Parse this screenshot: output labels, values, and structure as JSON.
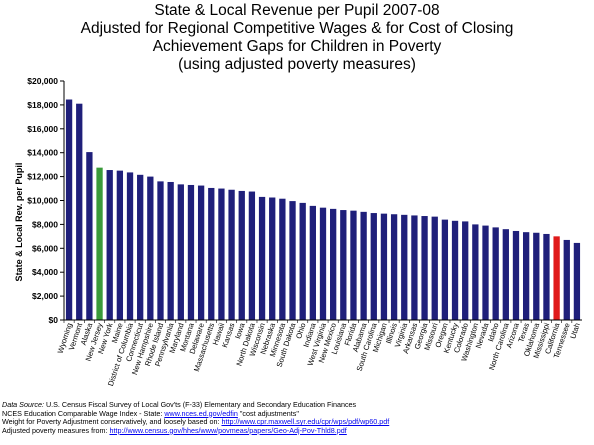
{
  "chart_data": {
    "type": "bar",
    "title_lines": [
      "State & Local Revenue per Pupil 2007-08",
      "Adjusted for Regional Competitive Wages & for Cost of Closing",
      "Achievement Gaps for Children in Poverty",
      "(using adjusted poverty measures)"
    ],
    "xlabel": "",
    "ylabel": "State & Local Rev. per Pupil",
    "ylim": [
      0,
      20000
    ],
    "ytick_labels": [
      "$0",
      "$2,000",
      "$4,000",
      "$6,000",
      "$8,000",
      "$10,000",
      "$12,000",
      "$14,000",
      "$16,000",
      "$18,000",
      "$20,000"
    ],
    "grid": false,
    "legend": "none",
    "colors": {
      "default": "#1f1f7a",
      "new_jersey": "#3a9a3a",
      "california": "#e01a1a"
    },
    "highlight": {
      "New Jersey": "#3a9a3a",
      "California": "#e01a1a"
    },
    "categories": [
      "Wyoming",
      "Vermont",
      "Alaska",
      "New Jersey",
      "New York",
      "Maine",
      "District of Columbia",
      "Connecticut",
      "New Hampshire",
      "Rhode Island",
      "Pennsylvania",
      "Maryland",
      "Montana",
      "Delaware",
      "Massachusetts",
      "Hawaii",
      "Kansas",
      "Iowa",
      "North Dakota",
      "Wisconsin",
      "Nebraska",
      "Minnesota",
      "South Dakota",
      "Ohio",
      "Indiana",
      "West Virginia",
      "New Mexico",
      "Louisiana",
      "Florida",
      "Alabama",
      "South Carolina",
      "Michigan",
      "Illinois",
      "Virginia",
      "Arkansas",
      "Georgia",
      "Missouri",
      "Oregon",
      "Kentucky",
      "Colorado",
      "Washington",
      "Nevada",
      "Idaho",
      "North Carolina",
      "Arizona",
      "Texas",
      "Oklahoma",
      "Mississippi",
      "California",
      "Tennessee",
      "Utah"
    ],
    "values": [
      18450,
      18100,
      14050,
      12750,
      12550,
      12500,
      12350,
      12150,
      12000,
      11600,
      11550,
      11350,
      11300,
      11250,
      11050,
      11000,
      10900,
      10800,
      10750,
      10300,
      10250,
      10150,
      9950,
      9800,
      9550,
      9400,
      9300,
      9200,
      9150,
      9050,
      8950,
      8900,
      8850,
      8800,
      8750,
      8700,
      8650,
      8400,
      8300,
      8250,
      8000,
      7900,
      7750,
      7600,
      7450,
      7350,
      7300,
      7200,
      7000,
      6700,
      6450
    ]
  },
  "footer": {
    "source_label": "Data Source:",
    "source_text": " U.S. Census Fiscal Survey of Local Gov'ts (F-33) Elementary and Secondary Education Finances",
    "nces_text": "NCES Education Comparable Wage Index - State: ",
    "nces_link": "www.nces.ed.gov/edfin",
    "nces_suffix": " \"cost adjustments\"",
    "weight_text": "Weight for Poverty Adjustment conservatively, and loosely based on: ",
    "weight_link": "http://www.cpr.maxwell.syr.edu/cpr/wps/pdf/wp60.pdf",
    "poverty_text": "Adjusted poverty measures from: ",
    "poverty_link": "http://www.census.gov/hhes/www/povmeas/papers/Geo-Adj-Pov-Thld8.pdf"
  }
}
